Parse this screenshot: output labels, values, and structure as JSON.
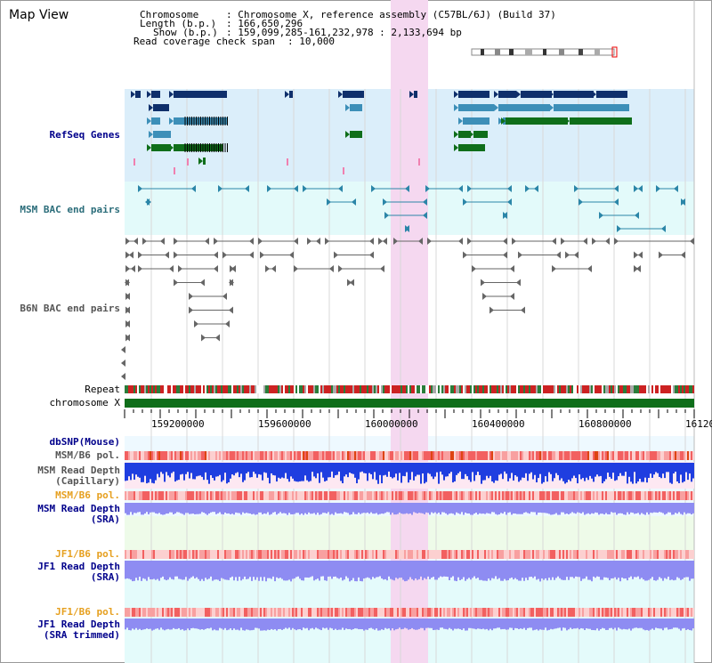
{
  "header": {
    "view_title": "Map View",
    "chromosome_label": "Chromosome",
    "chromosome_value": ": Chromosome X, reference assembly (C57BL/6J) (Build 37)",
    "length_label": "Length (b.p.)",
    "length_value": ": 166,650,296",
    "show_label": "Show (b.p.)",
    "show_value": ": 159,099,285-161,232,978 : 2,133,694 bp",
    "coverage_label": "Read coverage check span",
    "coverage_value": ": 10,000"
  },
  "tracks": {
    "refseq": "RefSeq Genes",
    "msm_bac": "MSM BAC end pairs",
    "b6n_bac": "B6N BAC end pairs",
    "repeat": "Repeat",
    "chromosome": "chromosome X",
    "dbsnp": "dbSNP(Mouse)",
    "msm_b6_pol_1": "MSM/B6 pol.",
    "msm_depth_cap_1": "MSM Read Depth",
    "msm_depth_cap_2": "(Capillary)",
    "msm_b6_pol_2": "MSM/B6 pol.",
    "msm_depth_sra_1": "MSM Read Depth",
    "msm_depth_sra_2": "(SRA)",
    "jf1_b6_pol_1": "JF1/B6 pol.",
    "jf1_depth_sra_1": "JF1 Read Depth",
    "jf1_depth_sra_2": "(SRA)",
    "jf1_b6_pol_2": "JF1/B6 pol.",
    "jf1_depth_trim_1": "JF1 Read Depth",
    "jf1_depth_trim_2": "(SRA trimmed)"
  },
  "axis_ticks": [
    "159200000",
    "159600000",
    "160000000",
    "160400000",
    "160800000",
    "16120"
  ],
  "colors": {
    "refseq_bg": "#dbeefa",
    "bac_bg": "#e3fafa",
    "highlight": "#f5d8f0",
    "gene_dark": "#0f2f6b",
    "gene_mid": "#3d8fb8",
    "gene_green": "#0f6e1a",
    "chromosome_bar": "#0f6e1a",
    "pol_red": "#e8413a",
    "depth_blue": "#1f3ee0",
    "depth_light": "#8e8cf2"
  }
}
